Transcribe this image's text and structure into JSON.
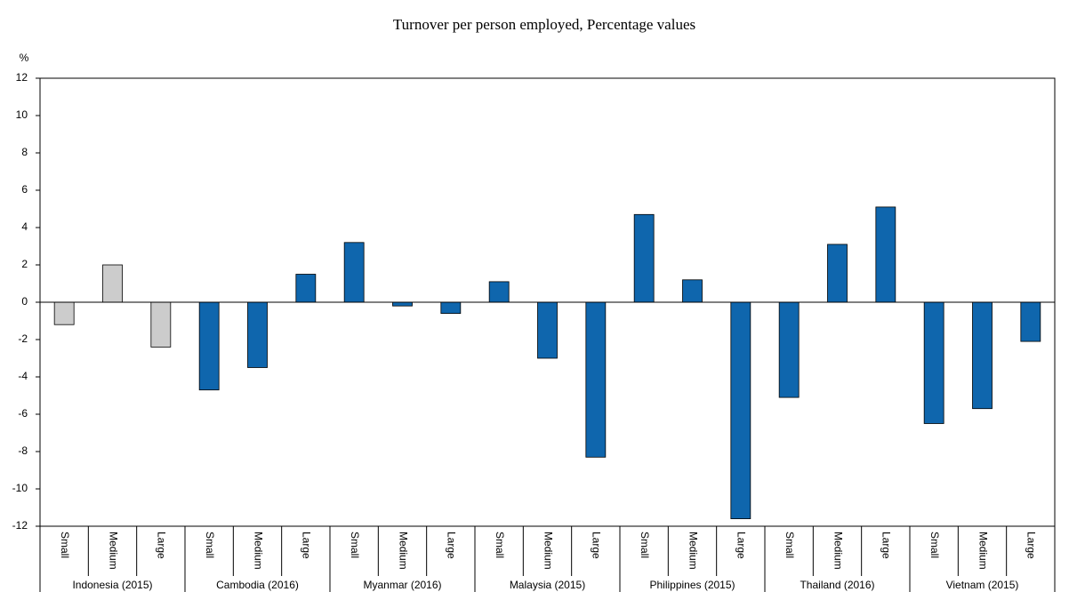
{
  "chart_data": {
    "type": "bar",
    "title": "Turnover per person employed, Percentage values",
    "y_unit": "%",
    "groups": [
      {
        "name": "Indonesia (2015)",
        "color": "#cccccc",
        "categories": [
          "Small",
          "Medium",
          "Large"
        ],
        "values": [
          -1.2,
          2.0,
          -2.4
        ]
      },
      {
        "name": "Cambodia (2016)",
        "color": "#0f66ad",
        "categories": [
          "Small",
          "Medium",
          "Large"
        ],
        "values": [
          -4.7,
          -3.5,
          1.5
        ]
      },
      {
        "name": "Myanmar (2016)",
        "color": "#0f66ad",
        "categories": [
          "Small",
          "Medium",
          "Large"
        ],
        "values": [
          3.2,
          -0.2,
          -0.6
        ]
      },
      {
        "name": "Malaysia (2015)",
        "color": "#0f66ad",
        "categories": [
          "Small",
          "Medium",
          "Large"
        ],
        "values": [
          1.1,
          -3.0,
          -8.3
        ]
      },
      {
        "name": "Philippines (2015)",
        "color": "#0f66ad",
        "categories": [
          "Small",
          "Medium",
          "Large"
        ],
        "values": [
          4.7,
          1.2,
          -11.6
        ]
      },
      {
        "name": "Thailand (2016)",
        "color": "#0f66ad",
        "categories": [
          "Small",
          "Medium",
          "Large"
        ],
        "values": [
          -5.1,
          3.1,
          5.1
        ]
      },
      {
        "name": "Vietnam (2015)",
        "color": "#0f66ad",
        "categories": [
          "Small",
          "Medium",
          "Large"
        ],
        "values": [
          -6.5,
          -5.7,
          -2.1
        ]
      }
    ],
    "ylim": [
      -12,
      12
    ],
    "yticks": [
      -12,
      -10,
      -8,
      -6,
      -4,
      -2,
      0,
      2,
      4,
      6,
      8,
      10,
      12
    ],
    "grid": false
  }
}
